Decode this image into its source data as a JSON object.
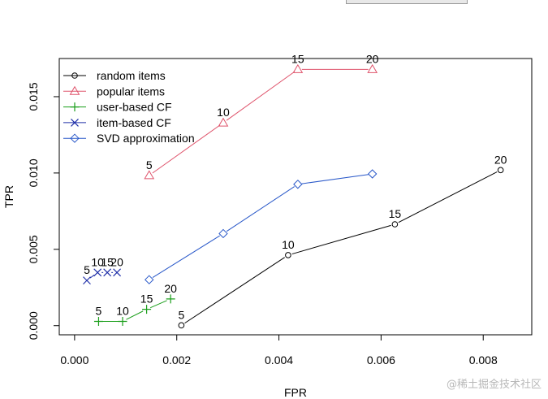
{
  "chart_data": {
    "type": "line",
    "xlabel": "FPR",
    "ylabel": "TPR",
    "xlim": [
      -0.0003,
      0.00895
    ],
    "ylim": [
      -0.0006,
      0.0175
    ],
    "x_ticks": [
      "0.000",
      "0.002",
      "0.004",
      "0.006",
      "0.008"
    ],
    "y_ticks": [
      "0.000",
      "0.005",
      "0.010",
      "0.015"
    ],
    "legend_position": "top-left",
    "series": [
      {
        "name": "random items",
        "color": "#000000",
        "marker": "circle",
        "points": [
          {
            "x": 0.00209,
            "y": 2e-05,
            "label": "5"
          },
          {
            "x": 0.00418,
            "y": 0.00462,
            "label": "10"
          },
          {
            "x": 0.00627,
            "y": 0.00664,
            "label": "15"
          },
          {
            "x": 0.00834,
            "y": 0.01019,
            "label": "20"
          }
        ]
      },
      {
        "name": "popular items",
        "color": "#DF536B",
        "marker": "triangle",
        "points": [
          {
            "x": 0.00146,
            "y": 0.00984,
            "label": "5"
          },
          {
            "x": 0.00291,
            "y": 0.01329,
            "label": "10"
          },
          {
            "x": 0.00437,
            "y": 0.01679,
            "label": "15"
          },
          {
            "x": 0.00583,
            "y": 0.01679,
            "label": "20"
          }
        ]
      },
      {
        "name": "user-based CF",
        "color": "#1A9E1A",
        "marker": "plus",
        "points": [
          {
            "x": 0.00047,
            "y": 0.00028,
            "label": "5"
          },
          {
            "x": 0.00094,
            "y": 0.00028,
            "label": "10"
          },
          {
            "x": 0.00141,
            "y": 0.00107,
            "label": "15"
          },
          {
            "x": 0.00188,
            "y": 0.00175,
            "label": "20"
          }
        ]
      },
      {
        "name": "item-based CF",
        "color": "#1F2FA8",
        "marker": "cross",
        "points": [
          {
            "x": 0.00024,
            "y": 0.00296,
            "label": "5"
          },
          {
            "x": 0.00045,
            "y": 0.00348,
            "label": "10"
          },
          {
            "x": 0.00064,
            "y": 0.00348,
            "label": "15"
          },
          {
            "x": 0.00083,
            "y": 0.00348,
            "label": "20"
          }
        ]
      },
      {
        "name": "SVD approximation",
        "color": "#2958C9",
        "marker": "diamond",
        "points": [
          {
            "x": 0.00146,
            "y": 0.00301
          },
          {
            "x": 0.00291,
            "y": 0.00603
          },
          {
            "x": 0.00437,
            "y": 0.00926
          },
          {
            "x": 0.00583,
            "y": 0.00994
          }
        ]
      }
    ]
  },
  "watermark": "@稀土掘金技术社区"
}
